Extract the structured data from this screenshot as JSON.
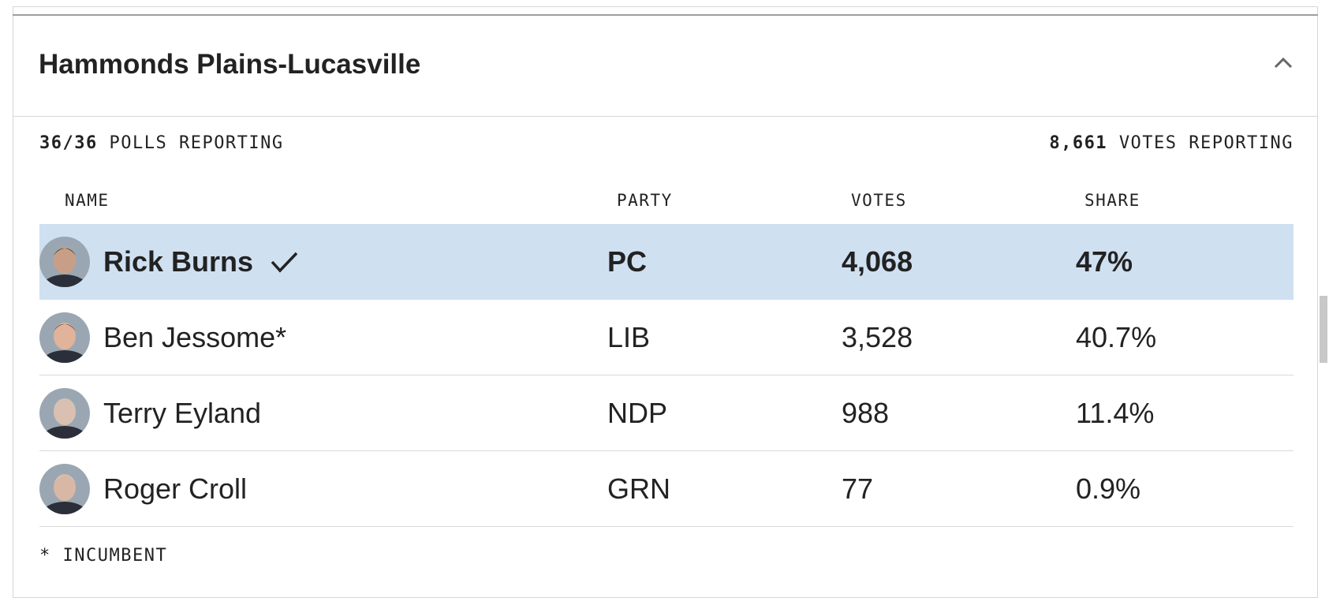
{
  "header": {
    "title": "Hammonds Plains-Lucasville"
  },
  "summary": {
    "polls": "36/36",
    "polls_label": "POLLS REPORTING",
    "votes": "8,661",
    "votes_label": "VOTES REPORTING"
  },
  "table": {
    "columns": [
      "NAME",
      "PARTY",
      "VOTES",
      "SHARE"
    ],
    "rows": [
      {
        "name": "Rick Burns",
        "party": "PC",
        "votes": "4,068",
        "share": "47%",
        "winner": true
      },
      {
        "name": "Ben Jessome*",
        "party": "LIB",
        "votes": "3,528",
        "share": "40.7%",
        "winner": false
      },
      {
        "name": "Terry Eyland",
        "party": "NDP",
        "votes": "988",
        "share": "11.4%",
        "winner": false
      },
      {
        "name": "Roger Croll",
        "party": "GRN",
        "votes": "77",
        "share": "0.9%",
        "winner": false
      }
    ]
  },
  "footnote": "* INCUMBENT"
}
